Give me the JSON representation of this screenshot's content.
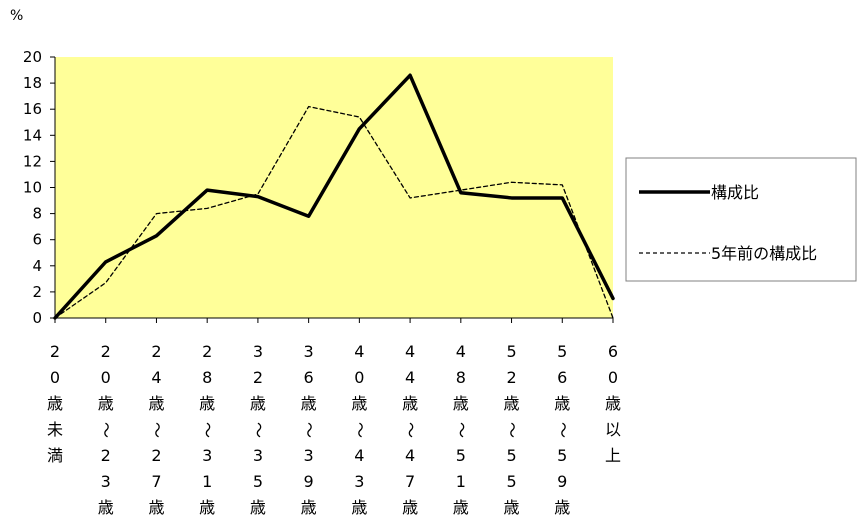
{
  "chart_data": {
    "type": "line",
    "title": "",
    "xlabel": "",
    "ylabel": "",
    "unit_label": "%",
    "categories": [
      "20歳未満",
      "20歳〜23歳",
      "24歳〜27歳",
      "28歳〜31歳",
      "32歳〜35歳",
      "36歳〜39歳",
      "40歳〜43歳",
      "44歳〜47歳",
      "48歳〜51歳",
      "52歳〜55歳",
      "56歳〜59歳",
      "60歳以上"
    ],
    "category_label_lines": [
      [
        "2",
        "0",
        "歳",
        "未",
        "満"
      ],
      [
        "2",
        "0",
        "歳",
        "∫",
        "2",
        "3",
        "歳"
      ],
      [
        "2",
        "4",
        "歳",
        "∫",
        "2",
        "7",
        "歳"
      ],
      [
        "2",
        "8",
        "歳",
        "∫",
        "3",
        "1",
        "歳"
      ],
      [
        "3",
        "2",
        "歳",
        "∫",
        "3",
        "5",
        "歳"
      ],
      [
        "3",
        "6",
        "歳",
        "∫",
        "3",
        "9",
        "歳"
      ],
      [
        "4",
        "0",
        "歳",
        "∫",
        "4",
        "3",
        "歳"
      ],
      [
        "4",
        "4",
        "歳",
        "∫",
        "4",
        "7",
        "歳"
      ],
      [
        "4",
        "8",
        "歳",
        "∫",
        "5",
        "1",
        "歳"
      ],
      [
        "5",
        "2",
        "歳",
        "∫",
        "5",
        "5",
        "歳"
      ],
      [
        "5",
        "6",
        "歳",
        "∫",
        "5",
        "9",
        "歳"
      ],
      [
        "6",
        "0",
        "歳",
        "以",
        "上"
      ]
    ],
    "series": [
      {
        "name": "構成比",
        "style": "solid",
        "values": [
          0,
          4.3,
          6.3,
          9.8,
          9.3,
          7.8,
          14.5,
          18.6,
          9.6,
          9.2,
          9.2,
          1.5
        ]
      },
      {
        "name": "5年前の構成比",
        "style": "dashed",
        "values": [
          0,
          2.7,
          8.0,
          8.4,
          9.5,
          16.2,
          15.4,
          9.2,
          9.8,
          10.4,
          10.2,
          0
        ]
      }
    ],
    "ylim": [
      0,
      20
    ],
    "yticks": [
      0,
      2,
      4,
      6,
      8,
      10,
      12,
      14,
      16,
      18,
      20
    ],
    "grid": false,
    "legend": "right",
    "colors": {
      "plot_background": "#ffff99",
      "line": "#000000"
    }
  }
}
